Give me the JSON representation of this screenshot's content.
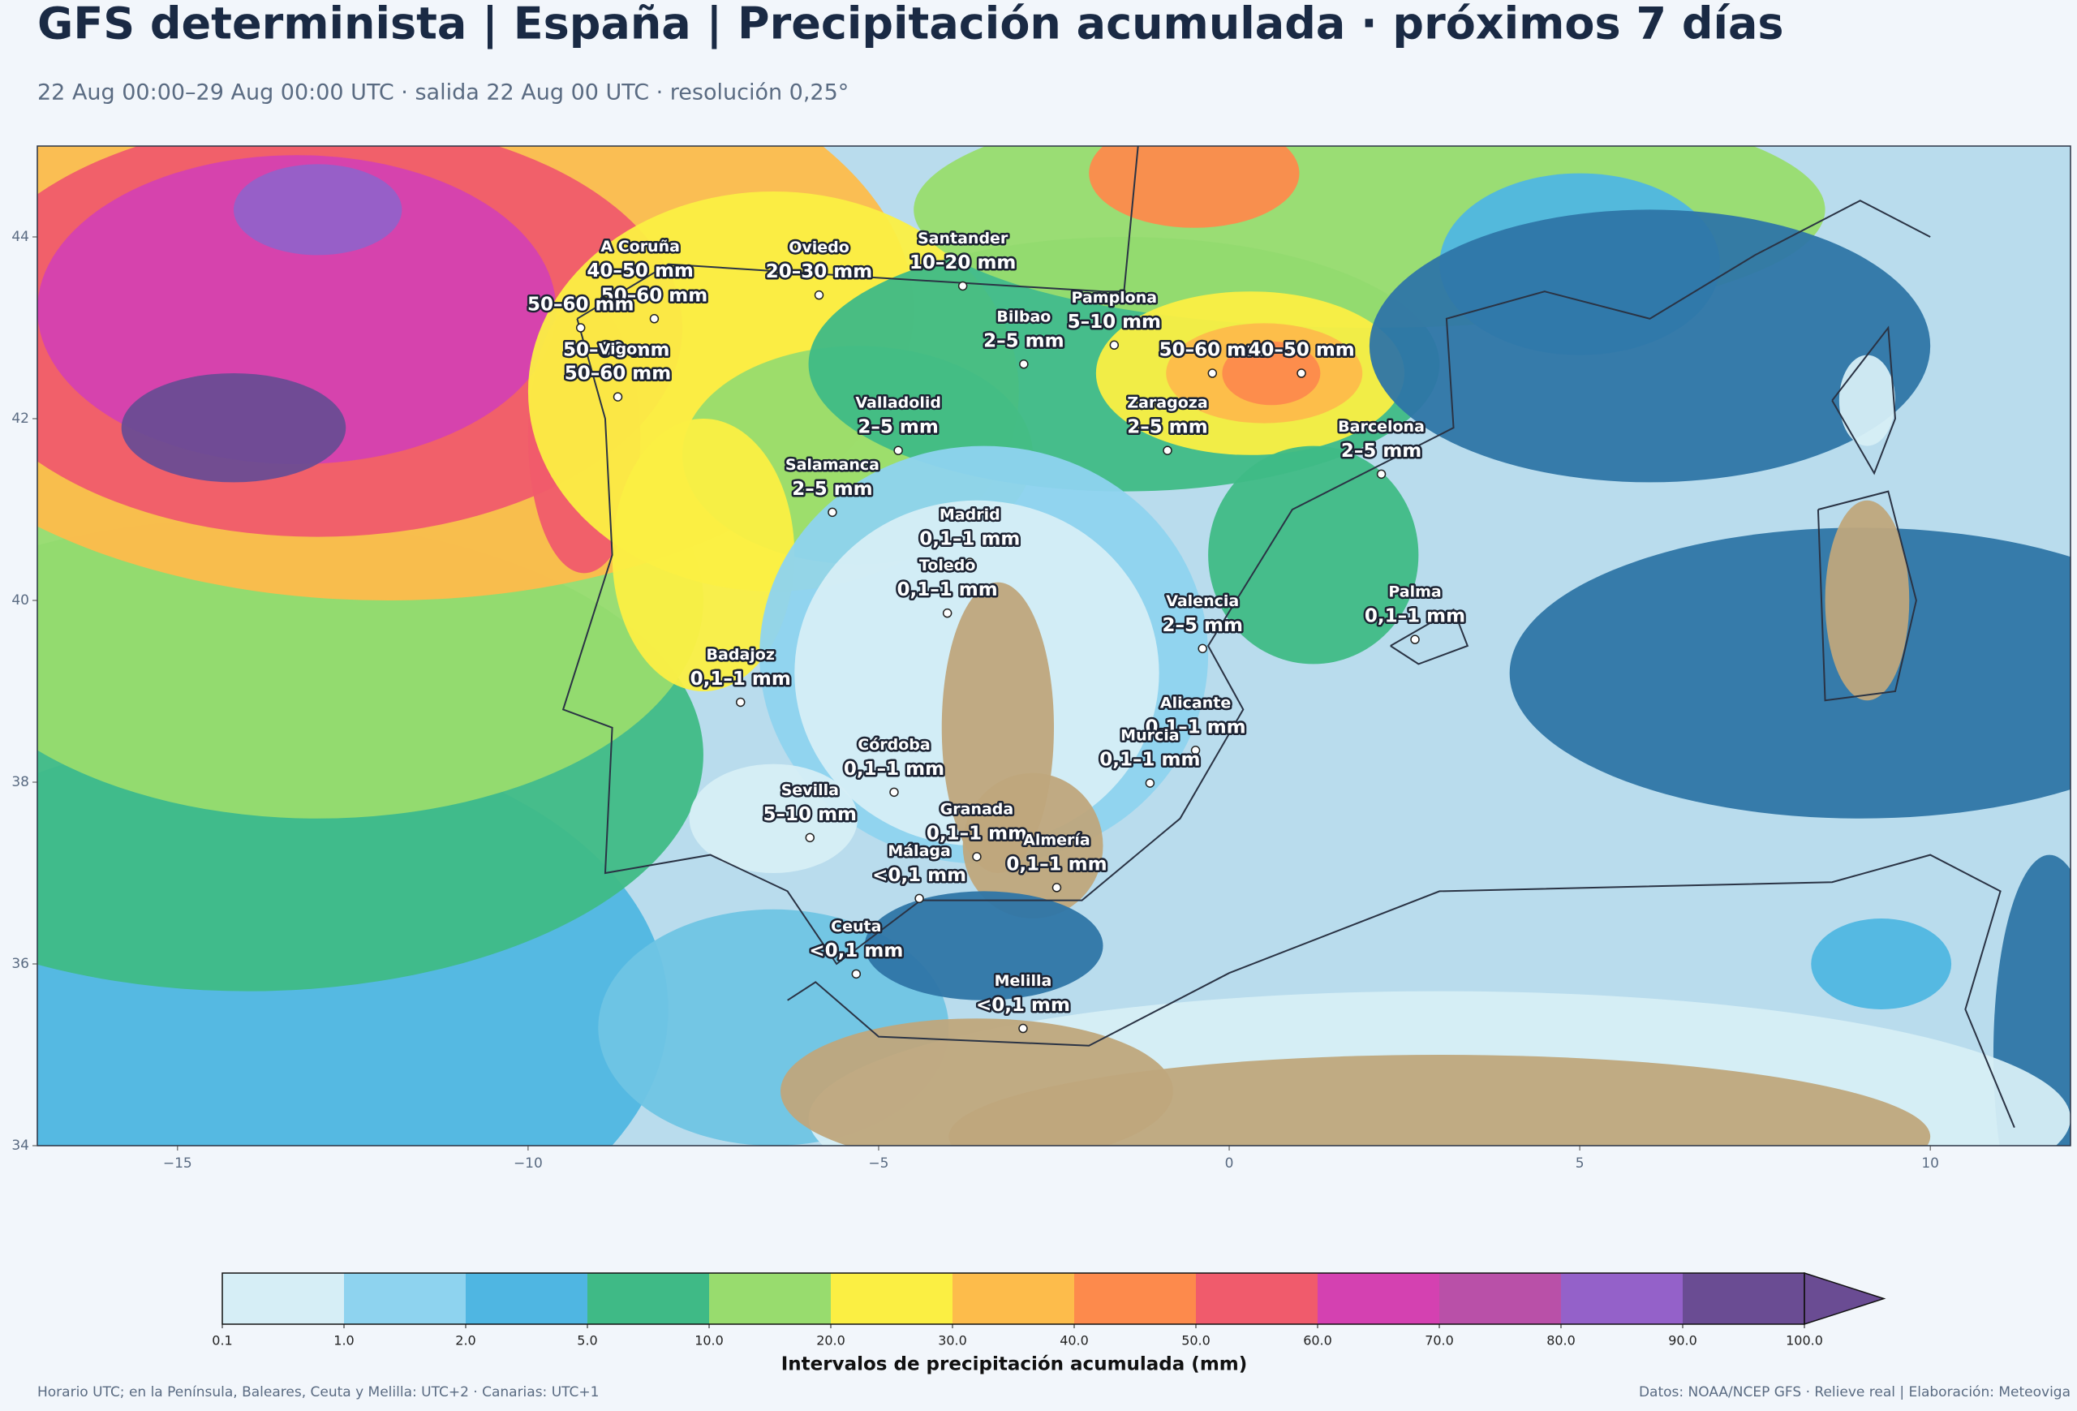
{
  "header": {
    "title": "GFS determinista | España | Precipitación acumulada · próximos 7 días",
    "subtitle": "22 Aug 00:00–29 Aug 00:00 UTC · salida 22 Aug 00 UTC · resolución 0,25°"
  },
  "map": {
    "xlim": [
      -17,
      12
    ],
    "ylim": [
      34,
      45
    ],
    "xticks": [
      {
        "value": -15,
        "label": "−15"
      },
      {
        "value": -10,
        "label": "−10"
      },
      {
        "value": -5,
        "label": "−5"
      },
      0,
      5,
      10
    ],
    "yticks": [
      34,
      36,
      38,
      40,
      42,
      44
    ],
    "cities": [
      {
        "name": "A Coruña",
        "label": "40–50 mm",
        "lon": -8.4,
        "lat": 43.37
      },
      {
        "label": "50–60 mm",
        "lon": -8.2,
        "lat": 43.1
      },
      {
        "label": "50–60 mm",
        "lon": -9.25,
        "lat": 43.0
      },
      {
        "label": "50–60 mm",
        "lon": -8.74,
        "lat": 42.5
      },
      {
        "name": "Vigo",
        "label": "50–60 mm",
        "lon": -8.72,
        "lat": 42.24
      },
      {
        "name": "Oviedo",
        "label": "20–30 mm",
        "lon": -5.85,
        "lat": 43.36
      },
      {
        "name": "Santander",
        "label": "10–20 mm",
        "lon": -3.8,
        "lat": 43.46
      },
      {
        "name": "Bilbao",
        "label": "2–5 mm",
        "lon": -2.93,
        "lat": 42.6
      },
      {
        "name": "Pamplona",
        "label": "5–10 mm",
        "lon": -1.64,
        "lat": 42.81
      },
      {
        "label": "50–60 mm",
        "lon": -0.24,
        "lat": 42.5
      },
      {
        "label": "40–50 mm",
        "lon": 1.03,
        "lat": 42.5
      },
      {
        "name": "Valladolid",
        "label": "2–5 mm",
        "lon": -4.72,
        "lat": 41.65
      },
      {
        "name": "Zaragoza",
        "label": "2–5 mm",
        "lon": -0.88,
        "lat": 41.65
      },
      {
        "name": "Barcelona",
        "label": "2–5 mm",
        "lon": 2.17,
        "lat": 41.39
      },
      {
        "name": "Salamanca",
        "label": "2–5 mm",
        "lon": -5.66,
        "lat": 40.97
      },
      {
        "name": "Madrid",
        "label": "0,1–1 mm",
        "lon": -3.7,
        "lat": 40.42
      },
      {
        "name": "Valencia",
        "label": "2–5 mm",
        "lon": -0.38,
        "lat": 39.47
      },
      {
        "name": "Toledo",
        "label": "0,1–1 mm",
        "lon": -4.02,
        "lat": 39.86
      },
      {
        "name": "Badajoz",
        "label": "0,1–1 mm",
        "lon": -6.97,
        "lat": 38.88
      },
      {
        "name": "Palma",
        "label": "0,1–1 mm",
        "lon": 2.65,
        "lat": 39.57
      },
      {
        "name": "Córdoba",
        "label": "0,1–1 mm",
        "lon": -4.78,
        "lat": 37.89
      },
      {
        "name": "Alicante",
        "label": "0,1–1 mm",
        "lon": -0.48,
        "lat": 38.35
      },
      {
        "name": "Murcia",
        "label": "0,1–1 mm",
        "lon": -1.13,
        "lat": 37.99
      },
      {
        "name": "Granada",
        "label": "0,1–1 mm",
        "lon": -3.6,
        "lat": 37.18
      },
      {
        "name": "Sevilla",
        "label": "5–10 mm",
        "lon": -5.98,
        "lat": 37.39
      },
      {
        "name": "Málaga",
        "label": "<0,1 mm",
        "lon": -4.42,
        "lat": 36.72
      },
      {
        "name": "Almería",
        "label": "0,1–1 mm",
        "lon": -2.46,
        "lat": 36.84
      },
      {
        "name": "Ceuta",
        "label": "<0,1 mm",
        "lon": -5.32,
        "lat": 35.89
      },
      {
        "name": "Melilla",
        "label": "<0,1 mm",
        "lon": -2.94,
        "lat": 35.29
      }
    ]
  },
  "colorbar": {
    "label": "Intervalos de precipitación acumulada (mm)",
    "levels": [
      {
        "value": 0.1,
        "label": "0.1"
      },
      {
        "value": 1,
        "label": "1.0"
      },
      {
        "value": 2,
        "label": "2.0"
      },
      {
        "value": 5,
        "label": "5.0"
      },
      {
        "value": 10,
        "label": "10.0"
      },
      {
        "value": 20,
        "label": "20.0"
      },
      {
        "value": 30,
        "label": "30.0"
      },
      {
        "value": 40,
        "label": "40.0"
      },
      {
        "value": 50,
        "label": "50.0"
      },
      {
        "value": 60,
        "label": "60.0"
      },
      {
        "value": 70,
        "label": "70.0"
      },
      {
        "value": 80,
        "label": "80.0"
      },
      {
        "value": 90,
        "label": "90.0"
      },
      {
        "value": 100,
        "label": "100.0"
      }
    ],
    "colors": [
      "#d6eef6",
      "#8ed3ef",
      "#4fb6e2",
      "#3fba86",
      "#98dc6e",
      "#fbef43",
      "#fdbc4b",
      "#fd8a4c",
      "#f05b6c",
      "#d441b1",
      "#b950a8",
      "#9461c9",
      "#6a4c93"
    ],
    "extend_color": "#6a4c93"
  },
  "footer": {
    "left": "Horario UTC; en la Península, Baleares, Ceuta y Melilla: UTC+2 · Canarias: UTC+1",
    "right": "Datos: NOAA/NCEP GFS · Relieve real | Elaboración: Meteoviga"
  }
}
